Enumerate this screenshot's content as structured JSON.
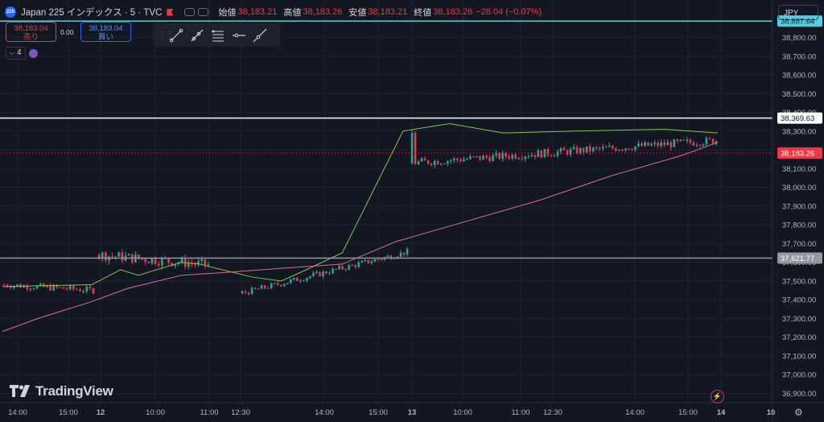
{
  "symbol": {
    "badge": "225",
    "name": "Japan 225 インデックス · 5 · TVC",
    "open_label": "始値",
    "open": "38,183.21",
    "high_label": "高値",
    "high": "38,183.26",
    "low_label": "安値",
    "low": "38,183.21",
    "close_label": "終値",
    "close": "38,183.26",
    "change": "−28.04 (−0.07%)"
  },
  "trade": {
    "sell_price": "38,183.04",
    "sell_label": "売り",
    "spread": "0.00",
    "buy_price": "38,183.04",
    "buy_label": "買い"
  },
  "indicators": {
    "count": "4"
  },
  "currency": "JPY",
  "branding": {
    "logo_text": "TradingView"
  },
  "colors": {
    "background": "#131722",
    "up": "#26a69a",
    "down": "#f23645",
    "ma_fast": "#8bc34a",
    "ma_slow": "#e066a3",
    "cyan_line": "#4dd0e1",
    "white_line": "#ffffff",
    "grey_line": "#9598a1"
  },
  "chart_data": {
    "type": "candlestick",
    "title": "Japan 225 インデックス · 5 · TVC",
    "ylim": [
      36850,
      39000
    ],
    "y_ticks": [
      36900,
      37000,
      37100,
      37200,
      37300,
      37400,
      37500,
      37600,
      37700,
      37800,
      37900,
      38000,
      38100,
      38200,
      38300,
      38400,
      38500,
      38600,
      38700,
      38800
    ],
    "x_ticks": [
      "14:00",
      "15:00",
      "12",
      "10:00",
      "11:00",
      "12:30",
      "14:00",
      "15:00",
      "13",
      "10:00",
      "11:00",
      "12:30",
      "14:00",
      "15:00",
      "14",
      "10"
    ],
    "hlines": [
      {
        "value": 38887.64,
        "label": "38,887.64",
        "color": "#4dd0e1"
      },
      {
        "value": 38369.63,
        "label": "38,369.63",
        "color": "#ffffff"
      },
      {
        "value": 37621.77,
        "label": "37,621.77",
        "color": "#9598a1"
      },
      {
        "value": 38183.26,
        "label": "38,183.26",
        "color": "#f23645",
        "dotted": true
      }
    ],
    "segments": [
      {
        "start": 37480,
        "end": 37450,
        "n": 28,
        "trend": 1.5,
        "noise": 18
      },
      {
        "start": 37640,
        "end": 37585,
        "n": 34,
        "trend": 1.5,
        "noise": 28
      },
      {
        "start": 37435,
        "end": 37655,
        "n": 52,
        "trend": 4.2,
        "noise": 16
      },
      {
        "start": 38130,
        "end": 38250,
        "n": 95,
        "trend": 1.0,
        "noise": 22
      }
    ],
    "series": [
      {
        "name": "MA fast",
        "color": "#8bc34a",
        "points": [
          [
            37470,
            0
          ],
          [
            37480,
            0.25
          ],
          [
            37560,
            0.33
          ],
          [
            37530,
            0.38
          ],
          [
            37600,
            0.5
          ],
          [
            37590,
            0.55
          ],
          [
            37520,
            0.7
          ],
          [
            37500,
            0.78
          ],
          [
            37560,
            0.85
          ],
          [
            37650,
            0.95
          ],
          [
            38300,
            1.12
          ],
          [
            38340,
            1.25
          ],
          [
            38290,
            1.4
          ],
          [
            38300,
            1.6
          ],
          [
            38310,
            1.85
          ],
          [
            38290,
            2.0
          ]
        ]
      },
      {
        "name": "MA slow",
        "color": "#e066a3",
        "points": [
          [
            37230,
            0
          ],
          [
            37300,
            0.1
          ],
          [
            37390,
            0.25
          ],
          [
            37460,
            0.35
          ],
          [
            37530,
            0.5
          ],
          [
            37545,
            0.62
          ],
          [
            37570,
            0.8
          ],
          [
            37590,
            0.95
          ],
          [
            37710,
            1.1
          ],
          [
            37820,
            1.3
          ],
          [
            37930,
            1.5
          ],
          [
            38060,
            1.7
          ],
          [
            38170,
            1.9
          ],
          [
            38240,
            2.0
          ]
        ]
      }
    ]
  }
}
